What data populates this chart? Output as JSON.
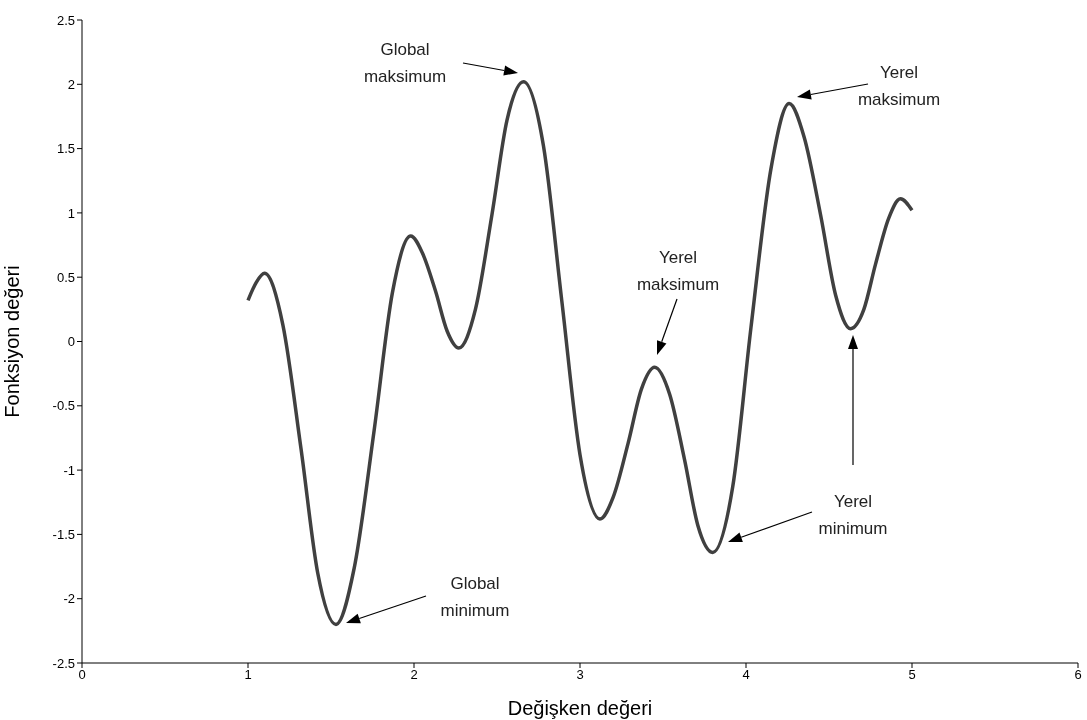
{
  "chart_data": {
    "type": "line",
    "xlabel": "Değişken değeri",
    "ylabel": "Fonksiyon değeri",
    "x": [
      1.0,
      1.05,
      1.1,
      1.21,
      1.32,
      1.42,
      1.53,
      1.64,
      1.76,
      1.87,
      1.98,
      2.05,
      2.13,
      2.2,
      2.27,
      2.37,
      2.47,
      2.56,
      2.66,
      2.78,
      2.89,
      3.0,
      3.12,
      3.2,
      3.29,
      3.37,
      3.45,
      3.54,
      3.63,
      3.71,
      3.8,
      3.92,
      4.03,
      4.15,
      4.26,
      4.35,
      4.45,
      4.54,
      4.63,
      4.71,
      4.78,
      4.86,
      4.93,
      5.0
    ],
    "series": [
      {
        "color": "#404040",
        "values": [
          0.32,
          0.46,
          0.53,
          0.13,
          -0.84,
          -1.8,
          -2.2,
          -1.76,
          -0.69,
          0.38,
          0.82,
          0.69,
          0.39,
          0.08,
          -0.05,
          0.25,
          0.99,
          1.72,
          2.02,
          1.52,
          0.32,
          -0.88,
          -1.38,
          -1.21,
          -0.79,
          -0.37,
          -0.2,
          -0.41,
          -0.92,
          -1.43,
          -1.64,
          -1.13,
          0.11,
          1.34,
          1.85,
          1.59,
          0.98,
          0.36,
          0.1,
          0.25,
          0.6,
          0.96,
          1.11,
          1.02
        ]
      }
    ],
    "xlim": [
      0,
      6
    ],
    "xticks": [
      0,
      1,
      2,
      3,
      4,
      5,
      6
    ],
    "ylim": [
      -2.5,
      2.5
    ],
    "yticks": [
      -2.5,
      -2,
      -1.5,
      -1,
      -0.5,
      0,
      0.5,
      1,
      1.5,
      2,
      2.5
    ],
    "grid": false,
    "legend": false,
    "marker": "none",
    "line_style": "solid",
    "annotations": [
      "Global maksimum",
      "Global minimum",
      "Yerel maksimum",
      "Yerel minimum",
      "Yerel maksimum"
    ]
  }
}
